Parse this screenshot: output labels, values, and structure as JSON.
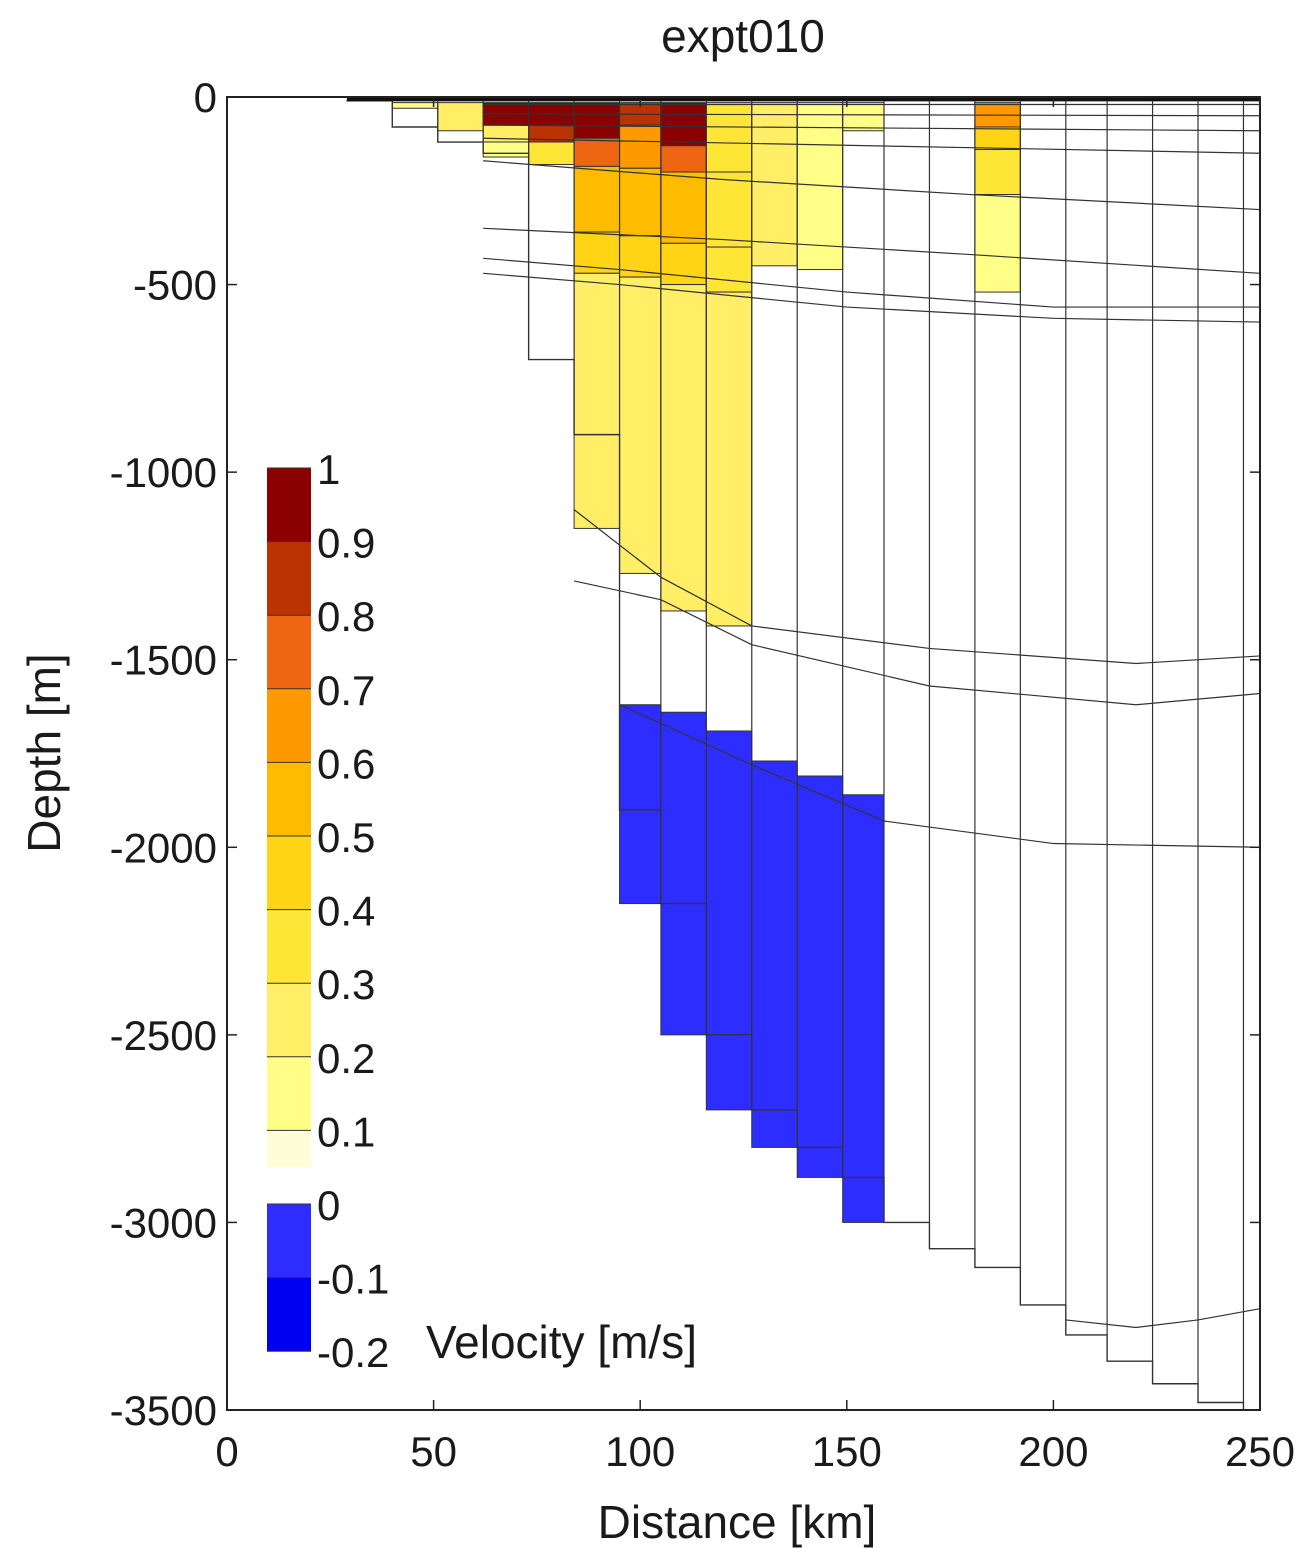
{
  "chart_data": {
    "type": "heatmap",
    "title": "expt010",
    "xlabel": "Distance [km]",
    "ylabel": "Depth [m]",
    "xlim": [
      0,
      250
    ],
    "ylim": [
      -3500,
      0
    ],
    "x_ticks": [
      0,
      50,
      100,
      150,
      200,
      250
    ],
    "y_ticks": [
      0,
      -500,
      -1000,
      -1500,
      -2000,
      -2500,
      -3000,
      -3500
    ],
    "grid": false,
    "colorbar": {
      "label": "Velocity [m/s]",
      "tick_labels": [
        "1",
        "0.9",
        "0.8",
        "0.7",
        "0.6",
        "0.5",
        "0.4",
        "0.3",
        "0.2",
        "0.1",
        "0",
        "-0.1",
        "-0.2"
      ],
      "levels": [
        {
          "min": 0.9,
          "max": 1.0,
          "color": "#8b0000"
        },
        {
          "min": 0.8,
          "max": 0.9,
          "color": "#bb3300"
        },
        {
          "min": 0.7,
          "max": 0.8,
          "color": "#ee6611"
        },
        {
          "min": 0.6,
          "max": 0.7,
          "color": "#ff9900"
        },
        {
          "min": 0.5,
          "max": 0.6,
          "color": "#ffbb00"
        },
        {
          "min": 0.4,
          "max": 0.5,
          "color": "#ffd415"
        },
        {
          "min": 0.3,
          "max": 0.4,
          "color": "#ffe535"
        },
        {
          "min": 0.2,
          "max": 0.3,
          "color": "#ffee66"
        },
        {
          "min": 0.1,
          "max": 0.2,
          "color": "#ffff88"
        },
        {
          "min": 0.0,
          "max": 0.1,
          "color": "#fffdd8"
        },
        {
          "min": -0.1,
          "max": 0.0,
          "color": "#2d2dff"
        },
        {
          "min": -0.2,
          "max": -0.1,
          "color": "#0000f2"
        }
      ]
    },
    "columns_km": [
      29,
      40,
      51,
      62,
      73,
      84,
      95,
      105,
      116,
      127,
      138,
      149,
      159,
      170,
      181,
      192,
      203,
      213,
      224,
      235,
      246,
      250
    ],
    "bottom_depth_m": [
      -10,
      -80,
      -120,
      -150,
      -700,
      -900,
      -1900,
      -2150,
      -2500,
      -2700,
      -2800,
      -2880,
      -3000,
      -3070,
      -3120,
      -3220,
      -3300,
      -3370,
      -3430,
      -3480,
      -3550
    ],
    "layer_interfaces_m": [
      {
        "x": [
          62,
          250
        ],
        "y": [
          -20,
          -20
        ]
      },
      {
        "x": [
          62,
          250
        ],
        "y": [
          -45,
          -50
        ]
      },
      {
        "x": [
          62,
          250
        ],
        "y": [
          -75,
          -90
        ]
      },
      {
        "x": [
          62,
          250
        ],
        "y": [
          -110,
          -150
        ]
      },
      {
        "x": [
          62,
          120,
          180,
          250
        ],
        "y": [
          -170,
          -220,
          -260,
          -300
        ]
      },
      {
        "x": [
          62,
          120,
          180,
          250
        ],
        "y": [
          -350,
          -380,
          -420,
          -470
        ]
      },
      {
        "x": [
          62,
          95,
          150,
          200,
          250
        ],
        "y": [
          -430,
          -460,
          -520,
          -560,
          -560
        ]
      },
      {
        "x": [
          62,
          95,
          150,
          200,
          250
        ],
        "y": [
          -470,
          -500,
          -560,
          -590,
          -600
        ]
      },
      {
        "x": [
          84,
          105,
          127,
          170,
          220,
          250
        ],
        "y": [
          -1100,
          -1280,
          -1410,
          -1470,
          -1510,
          -1490
        ]
      },
      {
        "x": [
          84,
          105,
          127,
          170,
          220,
          250
        ],
        "y": [
          -1290,
          -1340,
          -1460,
          -1570,
          -1620,
          -1590
        ]
      },
      {
        "x": [
          95,
          127,
          159,
          200,
          250
        ],
        "y": [
          -1620,
          -1780,
          -1930,
          -1990,
          -2000
        ]
      },
      {
        "x": [
          203,
          220,
          235,
          250
        ],
        "y": [
          -3260,
          -3280,
          -3260,
          -3230
        ]
      }
    ],
    "cells": [
      {
        "x0": 40,
        "x1": 51,
        "y0": -15,
        "y1": -30,
        "v": 0.15
      },
      {
        "x0": 51,
        "x1": 62,
        "y0": -15,
        "y1": -90,
        "v": 0.25
      },
      {
        "x0": 62,
        "x1": 73,
        "y0": -15,
        "y1": -75,
        "v": 0.95
      },
      {
        "x0": 62,
        "x1": 73,
        "y0": -75,
        "y1": -120,
        "v": 0.25
      },
      {
        "x0": 62,
        "x1": 73,
        "y0": -120,
        "y1": -160,
        "v": 0.15
      },
      {
        "x0": 73,
        "x1": 84,
        "y0": -15,
        "y1": -75,
        "v": 0.95
      },
      {
        "x0": 73,
        "x1": 84,
        "y0": -75,
        "y1": -120,
        "v": 0.85
      },
      {
        "x0": 73,
        "x1": 84,
        "y0": -120,
        "y1": -180,
        "v": 0.35
      },
      {
        "x0": 84,
        "x1": 95,
        "y0": -15,
        "y1": -110,
        "v": 0.95
      },
      {
        "x0": 84,
        "x1": 95,
        "y0": -110,
        "y1": -185,
        "v": 0.75
      },
      {
        "x0": 84,
        "x1": 95,
        "y0": -185,
        "y1": -360,
        "v": 0.55
      },
      {
        "x0": 84,
        "x1": 95,
        "y0": -360,
        "y1": -470,
        "v": 0.45
      },
      {
        "x0": 84,
        "x1": 95,
        "y0": -470,
        "y1": -1150,
        "v": 0.25
      },
      {
        "x0": 95,
        "x1": 105,
        "y0": -15,
        "y1": -75,
        "v": 0.85
      },
      {
        "x0": 95,
        "x1": 105,
        "y0": -75,
        "y1": -190,
        "v": 0.65
      },
      {
        "x0": 95,
        "x1": 105,
        "y0": -190,
        "y1": -370,
        "v": 0.55
      },
      {
        "x0": 95,
        "x1": 105,
        "y0": -370,
        "y1": -480,
        "v": 0.45
      },
      {
        "x0": 95,
        "x1": 105,
        "y0": -480,
        "y1": -1270,
        "v": 0.25
      },
      {
        "x0": 105,
        "x1": 116,
        "y0": -15,
        "y1": -130,
        "v": 0.95
      },
      {
        "x0": 105,
        "x1": 116,
        "y0": -130,
        "y1": -200,
        "v": 0.75
      },
      {
        "x0": 105,
        "x1": 116,
        "y0": -200,
        "y1": -390,
        "v": 0.55
      },
      {
        "x0": 105,
        "x1": 116,
        "y0": -390,
        "y1": -500,
        "v": 0.45
      },
      {
        "x0": 105,
        "x1": 116,
        "y0": -500,
        "y1": -1370,
        "v": 0.25
      },
      {
        "x0": 116,
        "x1": 127,
        "y0": -15,
        "y1": -200,
        "v": 0.35
      },
      {
        "x0": 116,
        "x1": 127,
        "y0": -200,
        "y1": -400,
        "v": 0.35
      },
      {
        "x0": 116,
        "x1": 127,
        "y0": -400,
        "y1": -520,
        "v": 0.35
      },
      {
        "x0": 116,
        "x1": 127,
        "y0": -520,
        "y1": -1410,
        "v": 0.25
      },
      {
        "x0": 127,
        "x1": 138,
        "y0": -15,
        "y1": -450,
        "v": 0.25
      },
      {
        "x0": 138,
        "x1": 149,
        "y0": -15,
        "y1": -460,
        "v": 0.15
      },
      {
        "x0": 149,
        "x1": 159,
        "y0": -15,
        "y1": -90,
        "v": 0.15
      },
      {
        "x0": 181,
        "x1": 192,
        "y0": -15,
        "y1": -80,
        "v": 0.65
      },
      {
        "x0": 181,
        "x1": 192,
        "y0": -80,
        "y1": -140,
        "v": 0.45
      },
      {
        "x0": 181,
        "x1": 192,
        "y0": -140,
        "y1": -260,
        "v": 0.35
      },
      {
        "x0": 181,
        "x1": 192,
        "y0": -260,
        "y1": -520,
        "v": 0.15
      },
      {
        "x0": 95,
        "x1": 105,
        "y0": -1620,
        "y1": -2150,
        "v": -0.05
      },
      {
        "x0": 105,
        "x1": 116,
        "y0": -1640,
        "y1": -2500,
        "v": -0.05
      },
      {
        "x0": 116,
        "x1": 127,
        "y0": -1690,
        "y1": -2700,
        "v": -0.05
      },
      {
        "x0": 127,
        "x1": 138,
        "y0": -1770,
        "y1": -2800,
        "v": -0.05
      },
      {
        "x0": 138,
        "x1": 149,
        "y0": -1810,
        "y1": -2880,
        "v": -0.05
      },
      {
        "x0": 149,
        "x1": 159,
        "y0": -1860,
        "y1": -3000,
        "v": -0.05
      }
    ]
  }
}
